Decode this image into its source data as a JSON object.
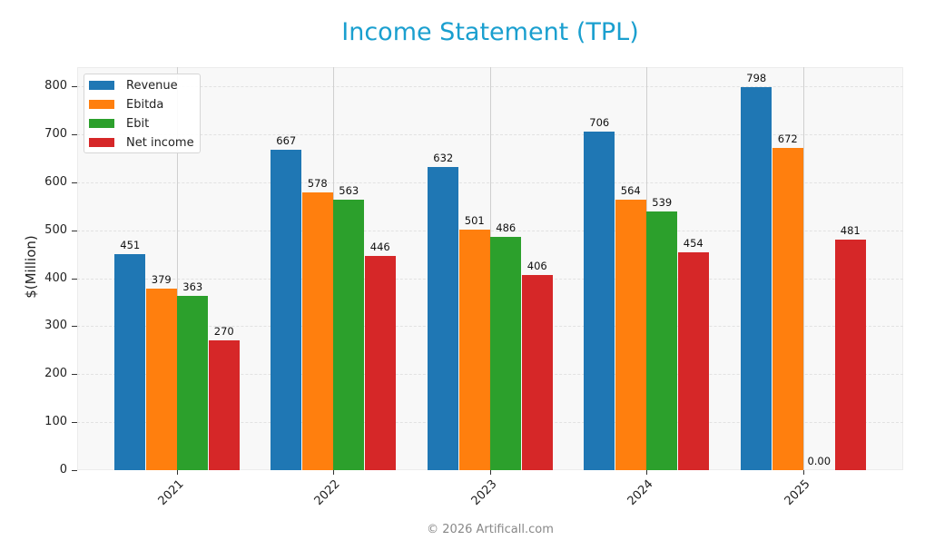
{
  "header": {
    "title": "Income Statement (TPL)"
  },
  "footer": {
    "copyright": "© 2026 Artificall.com"
  },
  "axes": {
    "ylabel": "$(Million)",
    "yticks": [
      "0",
      "100",
      "200",
      "300",
      "400",
      "500",
      "600",
      "700",
      "800"
    ],
    "xticks": [
      "2021",
      "2022",
      "2023",
      "2024",
      "2025"
    ]
  },
  "legend": {
    "items": [
      {
        "label": "Revenue",
        "color": "#1f77b4"
      },
      {
        "label": "Ebitda",
        "color": "#ff7f0e"
      },
      {
        "label": "Ebit",
        "color": "#2ca02c"
      },
      {
        "label": "Net income",
        "color": "#d62728"
      }
    ]
  },
  "labels": {
    "2021": [
      "451",
      "379",
      "363",
      "270"
    ],
    "2022": [
      "667",
      "578",
      "563",
      "446"
    ],
    "2023": [
      "632",
      "501",
      "486",
      "406"
    ],
    "2024": [
      "706",
      "564",
      "539",
      "454"
    ],
    "2025": [
      "798",
      "672",
      "0.00",
      "481"
    ]
  },
  "chart_data": {
    "type": "bar",
    "title": "Income Statement (TPL)",
    "xlabel": "",
    "ylabel": "$(Million)",
    "categories": [
      "2021",
      "2022",
      "2023",
      "2024",
      "2025"
    ],
    "series": [
      {
        "name": "Revenue",
        "color": "#1f77b4",
        "values": [
          451,
          667,
          632,
          706,
          798
        ]
      },
      {
        "name": "Ebitda",
        "color": "#ff7f0e",
        "values": [
          379,
          578,
          501,
          564,
          672
        ]
      },
      {
        "name": "Ebit",
        "color": "#2ca02c",
        "values": [
          363,
          563,
          486,
          539,
          0
        ]
      },
      {
        "name": "Net income",
        "color": "#d62728",
        "values": [
          270,
          446,
          406,
          454,
          481
        ]
      }
    ],
    "ylim": [
      0,
      840
    ],
    "yticks": [
      0,
      100,
      200,
      300,
      400,
      500,
      600,
      700,
      800
    ],
    "grid": true,
    "legend_position": "upper left",
    "annotations": [
      "© 2026 Artificall.com"
    ]
  }
}
